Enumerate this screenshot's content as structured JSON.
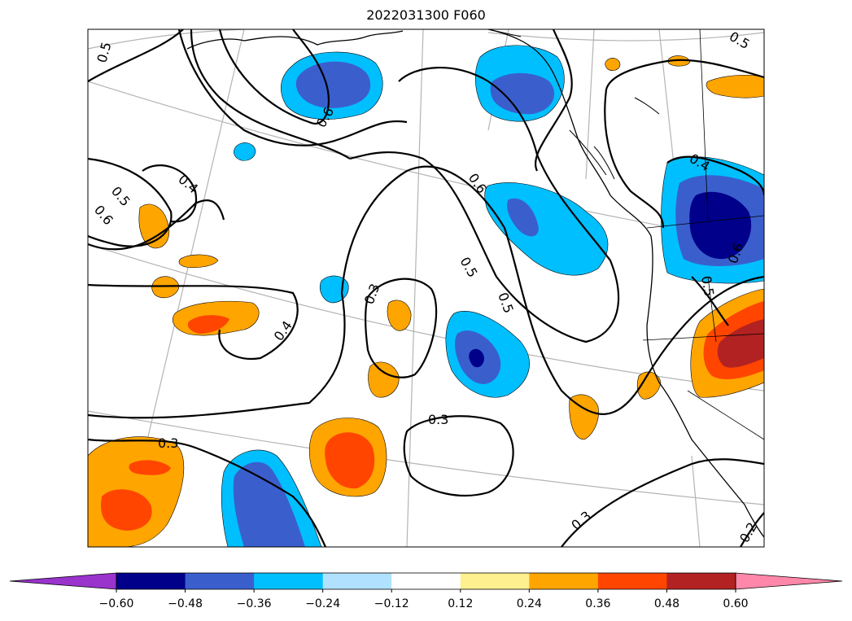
{
  "title": "2022031300 F060",
  "colorbar": {
    "levels": [
      "−0.60",
      "−0.48",
      "−0.36",
      "−0.24",
      "−0.12",
      "0.12",
      "0.24",
      "0.36",
      "0.48",
      "0.60"
    ],
    "colors": [
      "#9933cc",
      "#00008b",
      "#3a5fcd",
      "#00bfff",
      "#b0e2ff",
      "#ffffff",
      "#fff08f",
      "#ffa500",
      "#ff4500",
      "#b22222",
      "#ff88aa"
    ],
    "extend": "both"
  },
  "contour_labels": [
    "0.5",
    "0.6",
    "0.4",
    "0.5",
    "0.6",
    "0.3",
    "0.4",
    "0.5",
    "0.6",
    "0.3",
    "0.3",
    "0.3",
    "0.2",
    "0.4",
    "0.5",
    "0.6",
    "0.5"
  ],
  "map": {
    "projection": "Lambert conformal",
    "region": "Northeast Pacific and western North America",
    "coastlines": true,
    "borders": true,
    "graticule": true
  }
}
